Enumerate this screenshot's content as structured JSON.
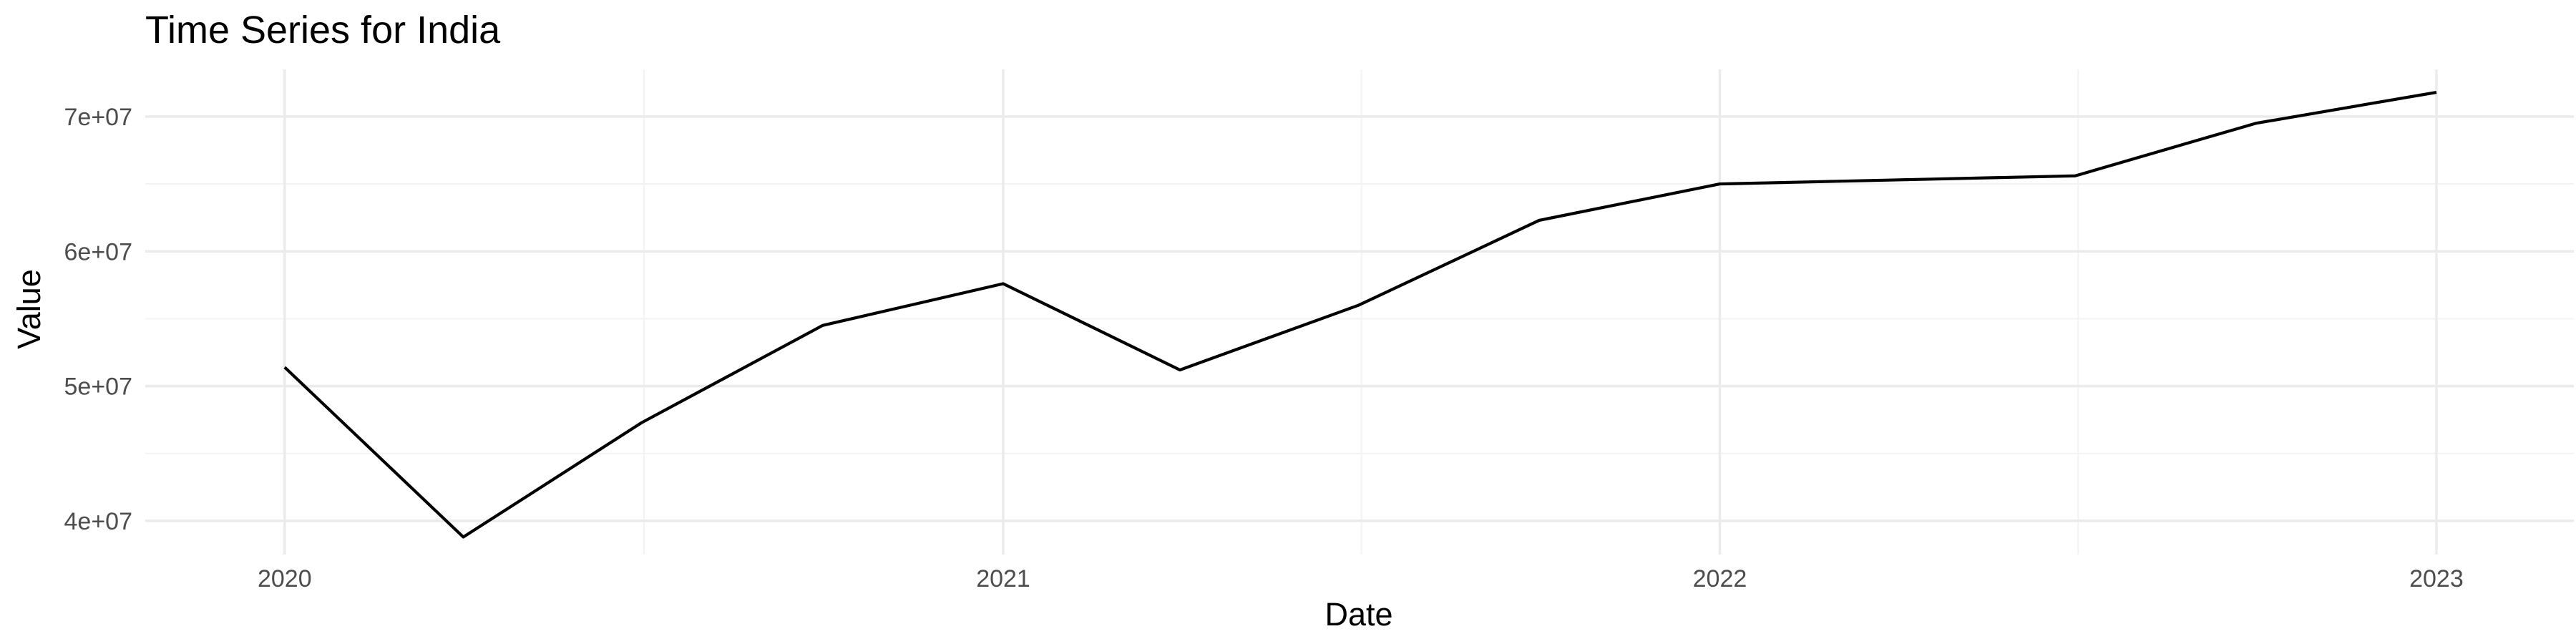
{
  "chart_data": {
    "type": "line",
    "title": "Time Series for India",
    "xlabel": "Date",
    "ylabel": "Value",
    "x": [
      "2020-01-01",
      "2020-04-01",
      "2020-07-01",
      "2020-10-01",
      "2021-01-01",
      "2021-04-01",
      "2021-07-01",
      "2021-10-01",
      "2022-01-01",
      "2022-04-01",
      "2022-07-01",
      "2022-10-01",
      "2023-01-01"
    ],
    "y": [
      51400000,
      38800000,
      47300000,
      54500000,
      57600000,
      51200000,
      56000000,
      62300000,
      65000000,
      65300000,
      65600000,
      69500000,
      71800000
    ],
    "x_ticks": [
      "2020",
      "2021",
      "2022",
      "2023"
    ],
    "y_ticks": [
      "4e+07",
      "5e+07",
      "6e+07",
      "7e+07"
    ],
    "y_tick_values": [
      40000000,
      50000000,
      60000000,
      70000000
    ],
    "xlim": [
      "2019-10-22",
      "2023-03-12"
    ],
    "ylim": [
      37500000,
      73500000
    ],
    "grid": true,
    "legend": "none",
    "colors": {
      "line": "#000000",
      "grid": "#ebebeb",
      "background": "#ffffff",
      "tick_text": "#4d4d4d"
    }
  }
}
